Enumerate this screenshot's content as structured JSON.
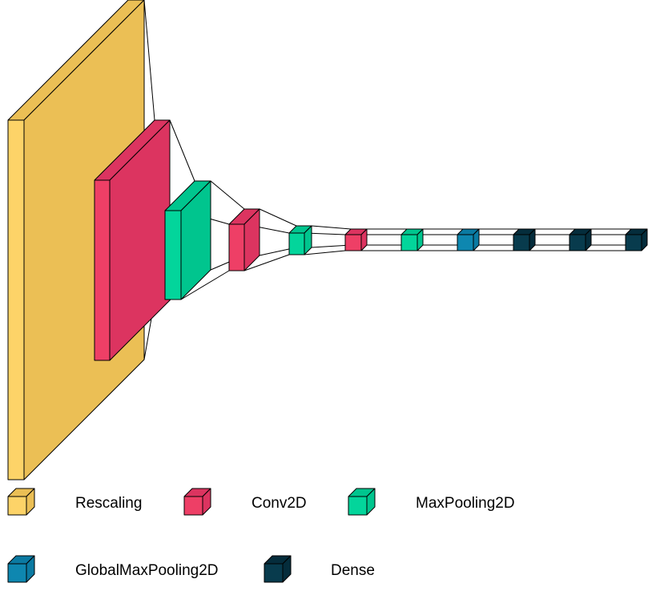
{
  "colors": {
    "Rescaling": {
      "front": "#FDD368",
      "top": "#EBBF55",
      "side": "#EBBF55"
    },
    "Conv2D": {
      "front": "#EE3F66",
      "top": "#DC3460",
      "side": "#DC3460"
    },
    "MaxPooling2D": {
      "front": "#03D59B",
      "top": "#00C58E",
      "side": "#00C58E"
    },
    "GlobalMaxPooling2D": {
      "front": "#0E87B0",
      "top": "#0B7AA2",
      "side": "#0B7AA2"
    },
    "Dense": {
      "front": "#083B4D",
      "top": "#052D3C",
      "side": "#052D3C"
    },
    "stroke": "#000000"
  },
  "layers": [
    {
      "type": "Rescaling"
    },
    {
      "type": "Conv2D"
    },
    {
      "type": "MaxPooling2D"
    },
    {
      "type": "Conv2D"
    },
    {
      "type": "MaxPooling2D"
    },
    {
      "type": "Conv2D"
    },
    {
      "type": "MaxPooling2D"
    },
    {
      "type": "GlobalMaxPooling2D"
    },
    {
      "type": "Dense"
    },
    {
      "type": "Dense"
    },
    {
      "type": "Dense"
    }
  ],
  "legend": [
    {
      "label": "Rescaling"
    },
    {
      "label": "Conv2D"
    },
    {
      "label": "MaxPooling2D"
    },
    {
      "label": "GlobalMaxPooling2D"
    },
    {
      "label": "Dense"
    }
  ]
}
